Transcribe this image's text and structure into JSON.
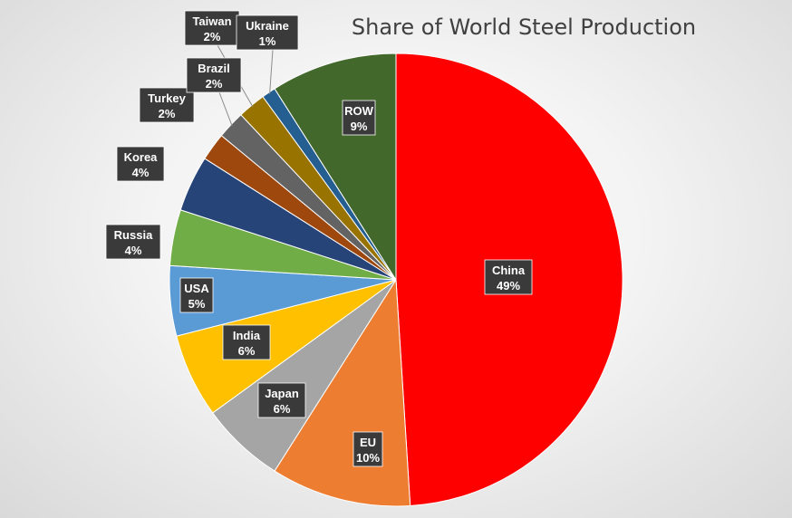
{
  "chart_data": {
    "type": "pie",
    "title": "Share of World Steel Production",
    "slices": [
      {
        "label": "China",
        "display": "49%",
        "value": 49,
        "color": "#ff0000"
      },
      {
        "label": "EU",
        "display": "10%",
        "value": 10,
        "color": "#ed7d31"
      },
      {
        "label": "Japan",
        "display": "6%",
        "value": 6,
        "color": "#a5a5a5"
      },
      {
        "label": "India",
        "display": "6%",
        "value": 6,
        "color": "#ffc000"
      },
      {
        "label": "USA",
        "display": "5%",
        "value": 5,
        "color": "#5b9bd5"
      },
      {
        "label": "Russia",
        "display": "4%",
        "value": 4,
        "color": "#70ad47"
      },
      {
        "label": "Korea",
        "display": "4%",
        "value": 4,
        "color": "#264478"
      },
      {
        "label": "Turkey",
        "display": "2%",
        "value": 2,
        "color": "#9e480e"
      },
      {
        "label": "Brazil",
        "display": "2%",
        "value": 2,
        "color": "#636363"
      },
      {
        "label": "Taiwan",
        "display": "2%",
        "value": 2,
        "color": "#997300"
      },
      {
        "label": "Ukraine",
        "display": "1%",
        "value": 1,
        "color": "#255e91"
      },
      {
        "label": "ROW",
        "display": "9%",
        "value": 9,
        "color": "#43682b"
      }
    ],
    "legend": "none",
    "data_labels": "category name and percentage"
  }
}
